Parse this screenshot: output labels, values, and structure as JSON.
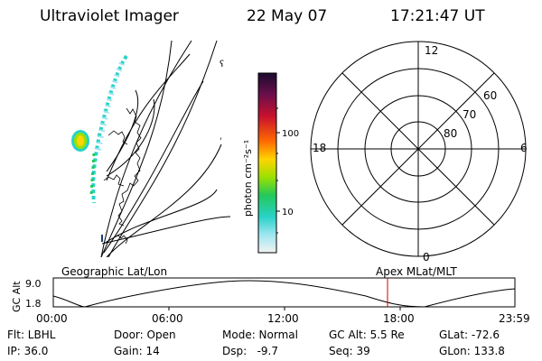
{
  "header": {
    "instrument": "Ultraviolet Imager",
    "date": "22 May 07",
    "time": "17:21:47 UT"
  },
  "colorbar": {
    "label": "photon cm⁻²s⁻¹",
    "ticks": [
      "100",
      "10"
    ],
    "colors": [
      "#1a0a2e",
      "#6b0f4a",
      "#c8102e",
      "#ff6a00",
      "#ffd400",
      "#9be000",
      "#23c85a",
      "#28d2c8",
      "#9fe6f0",
      "#f2f2f2"
    ]
  },
  "polar": {
    "mlt_labels": [
      "12",
      "18",
      "6",
      "0"
    ],
    "lat_labels": [
      "60",
      "70",
      "80"
    ]
  },
  "timeline": {
    "left_label": "Geographic Lat/Lon",
    "right_label": "Apex MLat/MLT",
    "yaxis_label": "GC Alt",
    "yticks": [
      "9.0",
      "1.8"
    ],
    "xticks": [
      "00:00",
      "06:00",
      "12:00",
      "18:00",
      "23:59"
    ],
    "marker_color": "#cc0000"
  },
  "info": {
    "filter": "Flt: LBHL",
    "door": "Door: Open",
    "mode": "Mode: Normal",
    "gc_alt": "GC Alt: 5.5 Re",
    "glat": "GLat: -72.6",
    "ip": "IP: 36.0",
    "gain": "Gain: 14",
    "dsp": "Dsp:   -9.7",
    "seq": "Seq: 39",
    "glon": "GLon: 133.8"
  }
}
